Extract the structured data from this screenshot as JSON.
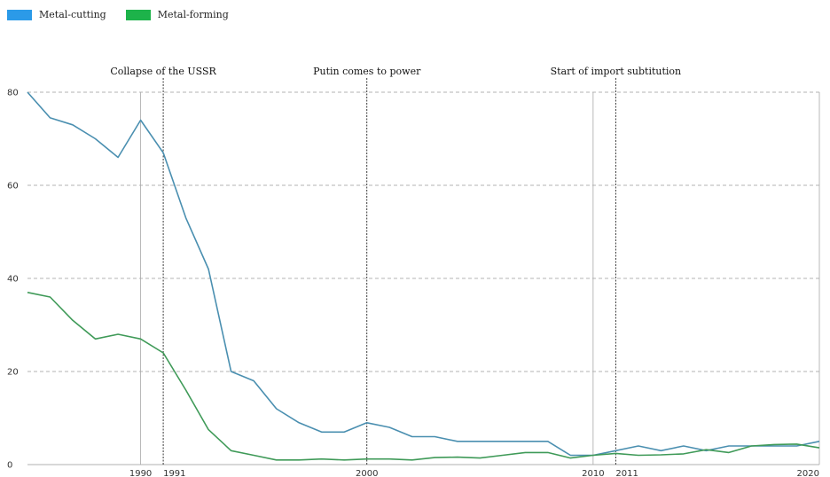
{
  "legend": {
    "items": [
      {
        "label": "Metal-cutting",
        "color": "#2b9ae8"
      },
      {
        "label": "Metal-forming",
        "color": "#1db34a"
      }
    ]
  },
  "chart_data": {
    "type": "line",
    "title": "",
    "xlabel": "",
    "ylabel": "",
    "xlim": [
      1985,
      2020
    ],
    "ylim": [
      0,
      80
    ],
    "yticks": [
      0,
      20,
      40,
      60,
      80
    ],
    "xticks": [
      1990,
      1991,
      2000,
      2010,
      2011,
      2020
    ],
    "grid": true,
    "legend_position": "top-left",
    "events": [
      {
        "year": 1991,
        "label": "Collapse of the USSR"
      },
      {
        "year": 2000,
        "label": "Putin comes to power"
      },
      {
        "year": 2011,
        "label": "Start of import subtitution"
      }
    ],
    "series": [
      {
        "name": "Metal-cutting",
        "color": "#4a8fb0",
        "x": [
          1985,
          1986,
          1987,
          1988,
          1989,
          1990,
          1991,
          1992,
          1993,
          1994,
          1995,
          1996,
          1997,
          1998,
          1999,
          2000,
          2001,
          2002,
          2003,
          2004,
          2005,
          2006,
          2007,
          2008,
          2009,
          2010,
          2011,
          2012,
          2013,
          2014,
          2015,
          2016,
          2017,
          2018,
          2019,
          2020
        ],
        "values": [
          80,
          74.5,
          73,
          70,
          66,
          74,
          67,
          53,
          42,
          20,
          18,
          12,
          9,
          7,
          7,
          9,
          8,
          6,
          6,
          5,
          5,
          5,
          5,
          5,
          2,
          2,
          3,
          4,
          3,
          4,
          3,
          4,
          4,
          4,
          4,
          5
        ]
      },
      {
        "name": "Metal-forming",
        "color": "#3f9a58",
        "x": [
          1985,
          1986,
          1987,
          1988,
          1989,
          1990,
          1991,
          1992,
          1993,
          1994,
          1995,
          1996,
          1997,
          1998,
          1999,
          2000,
          2001,
          2002,
          2003,
          2004,
          2005,
          2006,
          2007,
          2008,
          2009,
          2010,
          2011,
          2012,
          2013,
          2014,
          2015,
          2016,
          2017,
          2018,
          2019,
          2020
        ],
        "values": [
          37,
          36,
          31,
          27,
          28,
          27,
          24,
          16,
          7.5,
          3,
          2,
          1,
          1,
          1.2,
          1,
          1.2,
          1.2,
          1,
          1.5,
          1.6,
          1.4,
          2,
          2.6,
          2.6,
          1.4,
          2,
          2.4,
          2,
          2.1,
          2.3,
          3.2,
          2.6,
          4,
          4.3,
          4.4,
          3.6
        ]
      }
    ]
  }
}
